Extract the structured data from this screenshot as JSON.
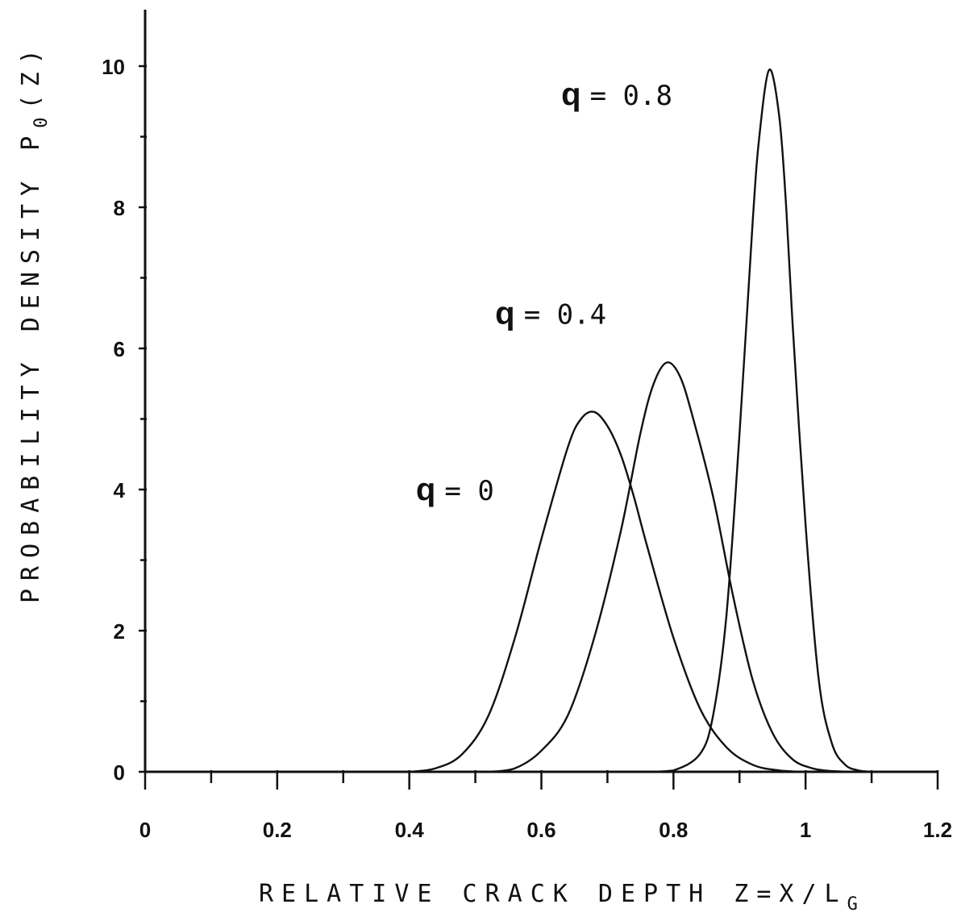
{
  "chart_data": {
    "type": "line",
    "xlabel": "RELATIVE CRACK DEPTH Z=X/L_G",
    "xlabel_parts": {
      "main": "RELATIVE CRACK DEPTH Z=X/L",
      "sub": "G"
    },
    "ylabel": "PROBABILITY DENSITY P_0(Z)",
    "ylabel_parts": {
      "main": "PROBABILITY DENSITY P",
      "sub": "0",
      "tail": "(Z)"
    },
    "xlim": [
      0,
      1.2
    ],
    "ylim": [
      0,
      10.5
    ],
    "x_ticks": [
      0,
      0.2,
      0.4,
      0.6,
      0.8,
      1,
      1.2
    ],
    "x_tick_labels": [
      "0",
      "0.2",
      "0.4",
      "0.6",
      "0.8",
      "1",
      "1.2"
    ],
    "y_ticks": [
      0,
      2,
      4,
      6,
      8,
      10
    ],
    "y_tick_labels": [
      "0",
      "2",
      "4",
      "6",
      "8",
      "10"
    ],
    "grid": false,
    "series": [
      {
        "name": "q = 0",
        "x": [
          0.4,
          0.44,
          0.48,
          0.52,
          0.56,
          0.6,
          0.64,
          0.66,
          0.68,
          0.7,
          0.72,
          0.74,
          0.76,
          0.8,
          0.84,
          0.88,
          0.92,
          0.96,
          1.0
        ],
        "y": [
          0.0,
          0.05,
          0.25,
          0.8,
          1.9,
          3.3,
          4.6,
          5.0,
          5.1,
          4.9,
          4.5,
          3.9,
          3.2,
          1.9,
          0.9,
          0.35,
          0.1,
          0.02,
          0.0
        ]
      },
      {
        "name": "q = 0.4",
        "x": [
          0.52,
          0.56,
          0.6,
          0.64,
          0.68,
          0.72,
          0.75,
          0.77,
          0.79,
          0.81,
          0.83,
          0.86,
          0.89,
          0.92,
          0.95,
          0.98,
          1.01,
          1.04,
          1.08
        ],
        "y": [
          0.0,
          0.05,
          0.3,
          0.8,
          1.9,
          3.4,
          4.8,
          5.5,
          5.8,
          5.6,
          5.0,
          3.9,
          2.5,
          1.3,
          0.55,
          0.18,
          0.05,
          0.01,
          0.0
        ]
      },
      {
        "name": "q = 0.8",
        "x": [
          0.76,
          0.8,
          0.84,
          0.86,
          0.88,
          0.9,
          0.92,
          0.93,
          0.945,
          0.96,
          0.97,
          0.98,
          1.0,
          1.02,
          1.04,
          1.06,
          1.08,
          1.1
        ],
        "y": [
          0.0,
          0.02,
          0.25,
          0.8,
          2.2,
          4.8,
          7.8,
          9.0,
          9.95,
          9.3,
          8.1,
          6.4,
          3.5,
          1.3,
          0.4,
          0.1,
          0.02,
          0.0
        ]
      }
    ],
    "annotations": [
      {
        "text": "q = 0",
        "q": "q",
        "rest": "= 0",
        "x": 0.41,
        "y": 3.85
      },
      {
        "text": "q = 0.4",
        "q": "q",
        "rest": "= 0.4",
        "x": 0.53,
        "y": 6.35
      },
      {
        "text": "q = 0.8",
        "q": "q",
        "rest": "= 0.8",
        "x": 0.63,
        "y": 9.45
      }
    ]
  }
}
